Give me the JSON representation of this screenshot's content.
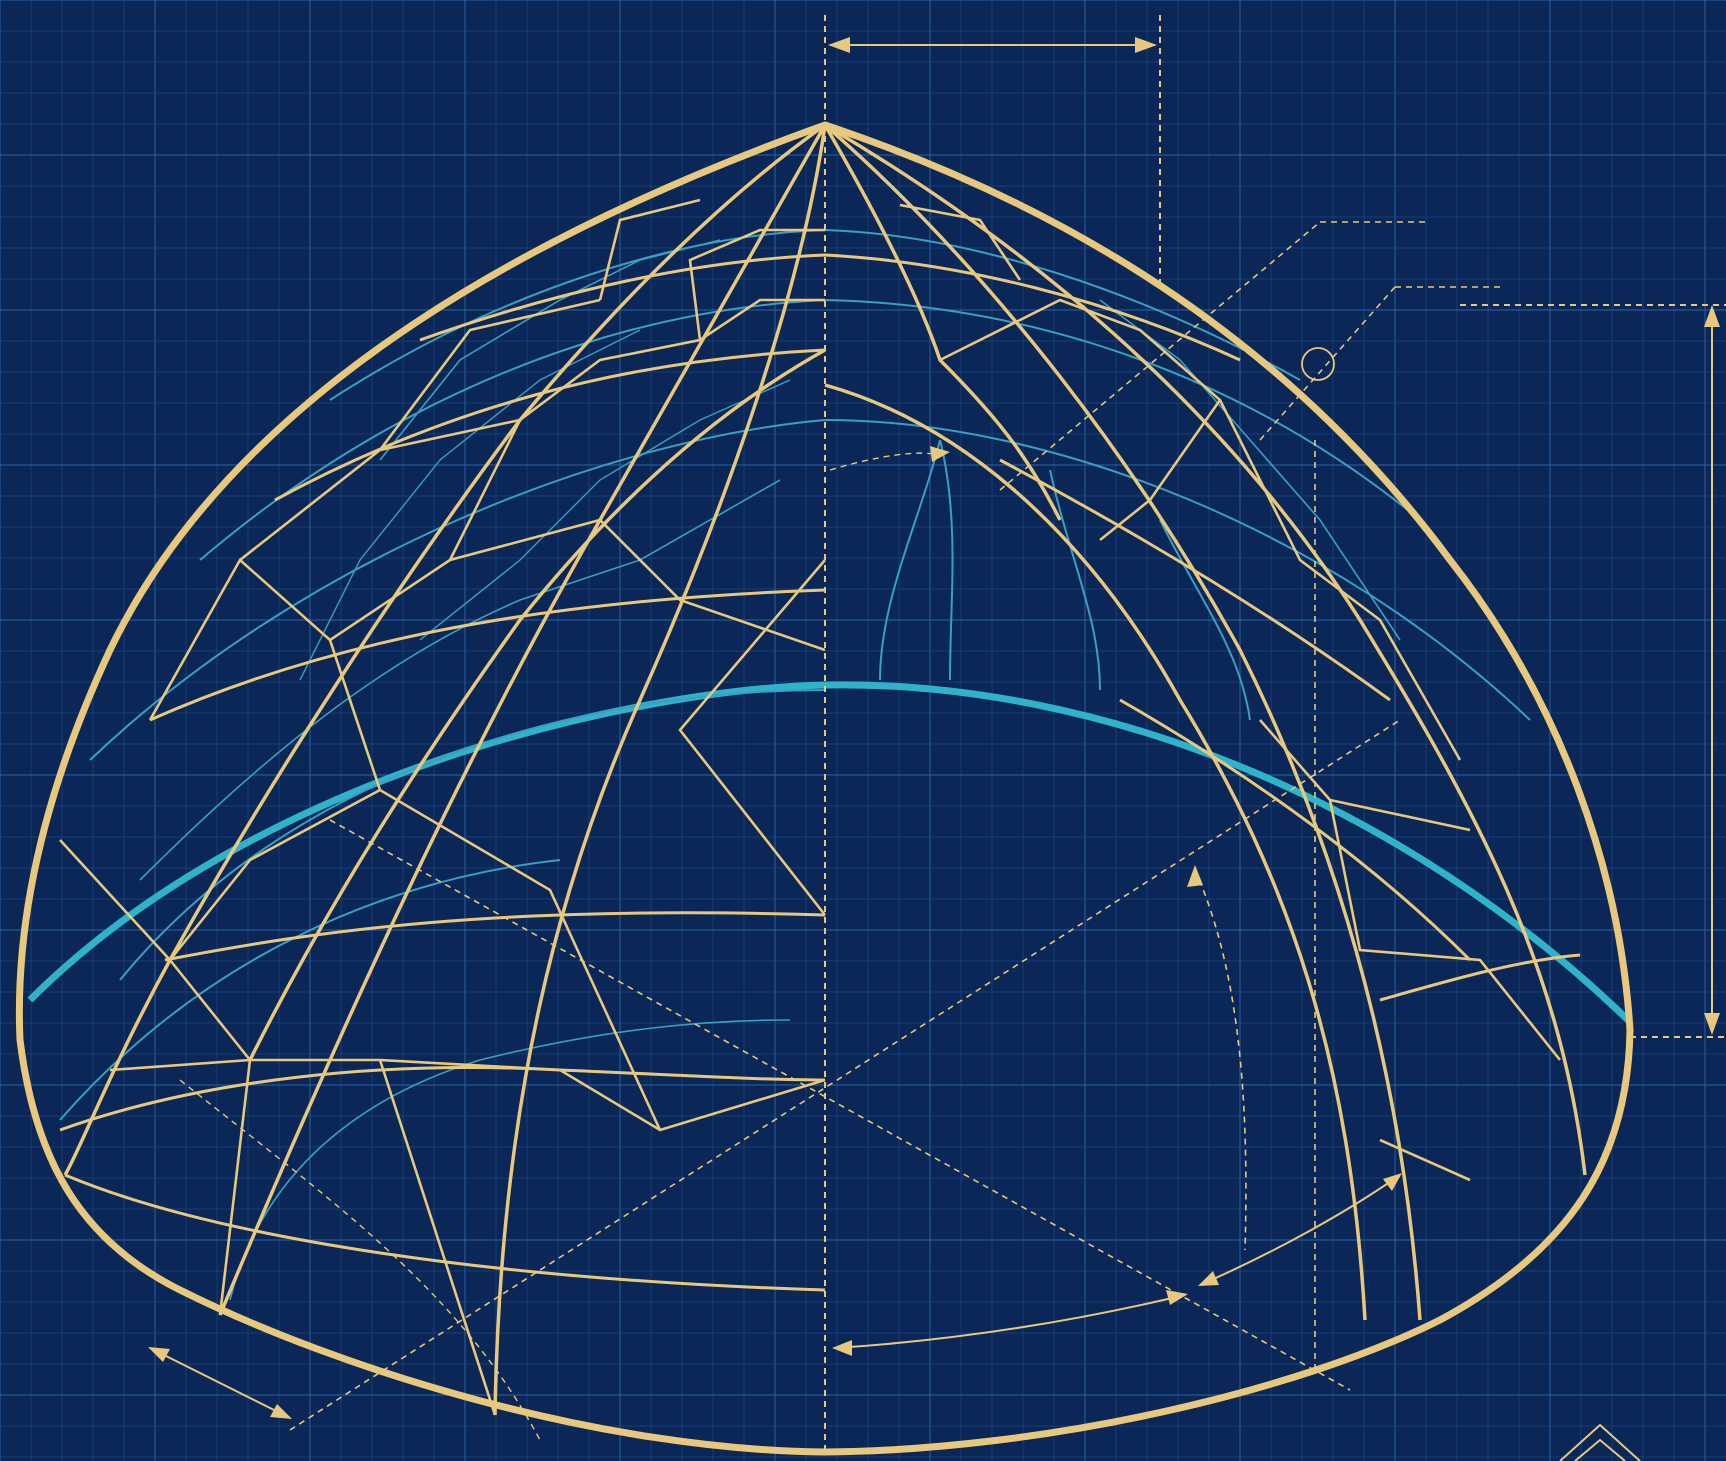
{
  "drawing": {
    "subject": "",
    "colors": {
      "background": "#0a2757",
      "grid": "#2a62a6",
      "structure": "#e7c87c",
      "lattice": "#2fb3c8"
    },
    "annotations": {
      "top_span_label": "",
      "height_label": "",
      "callout_1_label": "",
      "callout_2_label": ""
    }
  }
}
